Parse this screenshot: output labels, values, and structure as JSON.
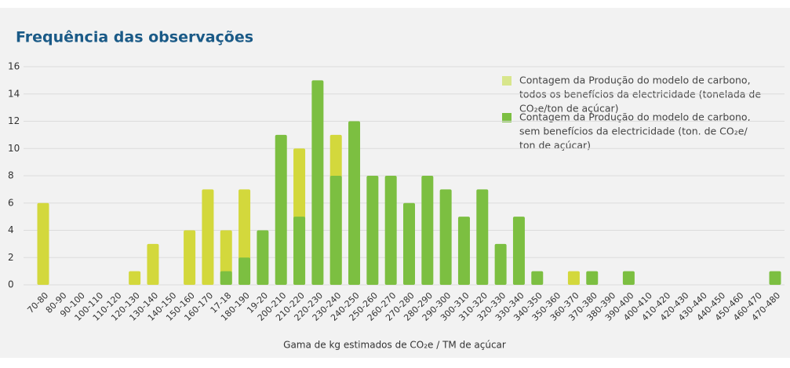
{
  "chart_data": {
    "type": "bar",
    "title": "Frequência das observações",
    "x_label": "Gama de kg estimados de CO₂e / TM de açúcar",
    "categories": [
      "70-80",
      "80-90",
      "90-100",
      "100-110",
      "110-120",
      "120-130",
      "130-140",
      "140-150",
      "150-160",
      "160-170",
      "17-18",
      "180-190",
      "19-20",
      "200-210",
      "210-220",
      "220-230",
      "230-240",
      "240-250",
      "250-260",
      "260-270",
      "270-280",
      "280-290",
      "290-300",
      "300-310",
      "310-320",
      "320-330",
      "330-340",
      "340-350",
      "350-360",
      "360-370",
      "370-380",
      "380-390",
      "390-400",
      "400-410",
      "410-420",
      "420-430",
      "430-440",
      "440-450",
      "450-460",
      "460-470",
      "470-480"
    ],
    "series": [
      {
        "name": [
          "Contagem da Produção do modelo de carbono,",
          "todos os benefícios da electricidade (tonelada de",
          "CO₂e/ton de açúcar)"
        ],
        "color": "#d3d83c",
        "legend_color": "#d8e68c",
        "values": [
          6,
          0,
          0,
          0,
          0,
          1,
          3,
          0,
          4,
          7,
          4,
          7,
          0,
          0,
          10,
          0,
          11,
          0,
          0,
          0,
          0,
          0,
          0,
          0,
          0,
          0,
          0,
          0,
          0,
          1,
          0,
          0,
          0,
          0,
          0,
          0,
          0,
          0,
          0,
          0,
          0
        ]
      },
      {
        "name": [
          "Contagem da Produção do modelo de carbono,",
          "sem benefícios da electricidade (ton. de CO₂e/",
          "ton de açúcar)"
        ],
        "color": "#7cbf41",
        "legend_color": "#7cbf41",
        "values": [
          0,
          0,
          0,
          0,
          0,
          0,
          0,
          0,
          0,
          0,
          1,
          2,
          4,
          11,
          5,
          15,
          8,
          12,
          8,
          8,
          6,
          8,
          7,
          5,
          7,
          3,
          5,
          1,
          0,
          0,
          1,
          0,
          1,
          0,
          0,
          0,
          0,
          0,
          0,
          0,
          1
        ]
      }
    ],
    "ylim": [
      0,
      16
    ],
    "yticks": [
      0,
      2,
      4,
      6,
      8,
      10,
      12,
      14,
      16
    ],
    "grid": true
  }
}
